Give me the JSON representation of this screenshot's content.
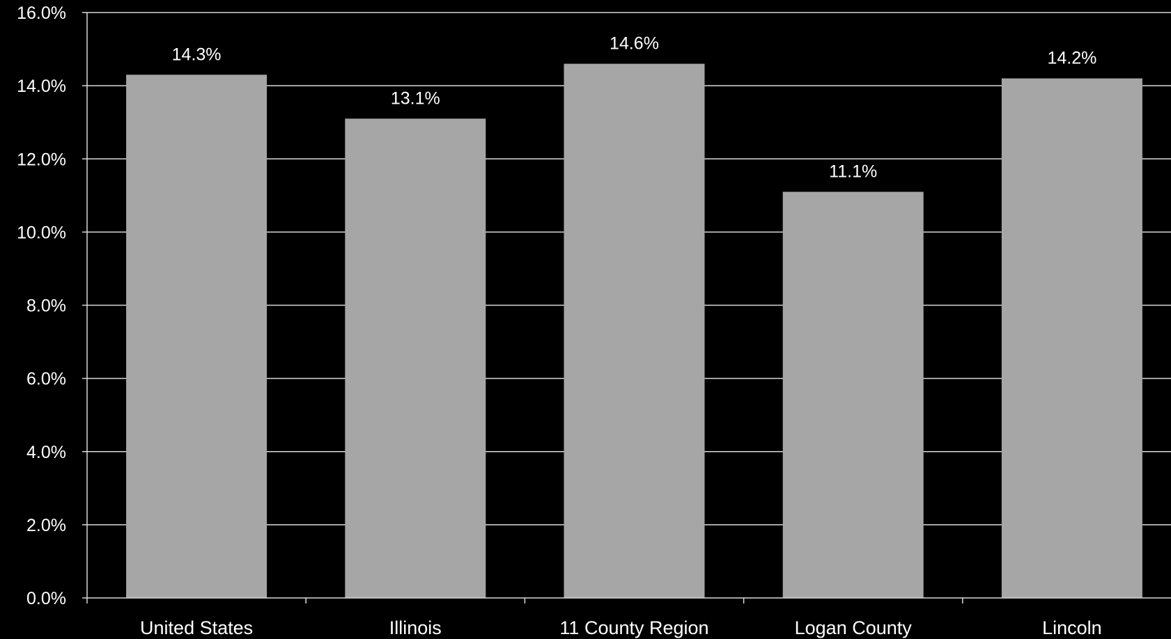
{
  "chart_data": {
    "type": "bar",
    "title": "",
    "xlabel": "",
    "ylabel": "",
    "categories": [
      "United States",
      "Illinois",
      "11 County Region",
      "Logan County",
      "Lincoln"
    ],
    "values": [
      14.3,
      13.1,
      14.6,
      11.1,
      14.2
    ],
    "data_labels": [
      "14.3%",
      "13.1%",
      "14.6%",
      "11.1%",
      "14.2%"
    ],
    "ylim": [
      0,
      16
    ],
    "yticks": [
      0,
      2,
      4,
      6,
      8,
      10,
      12,
      14,
      16
    ],
    "ytick_labels": [
      "0.0%",
      "2.0%",
      "4.0%",
      "6.0%",
      "8.0%",
      "10.0%",
      "12.0%",
      "14.0%",
      "16.0%"
    ],
    "grid": true,
    "legend": "none",
    "colors": {
      "background": "#000000",
      "bar": "#a6a6a6",
      "gridline": "#d9d9d9",
      "axis": "#d9d9d9",
      "text": "#ffffff"
    }
  }
}
